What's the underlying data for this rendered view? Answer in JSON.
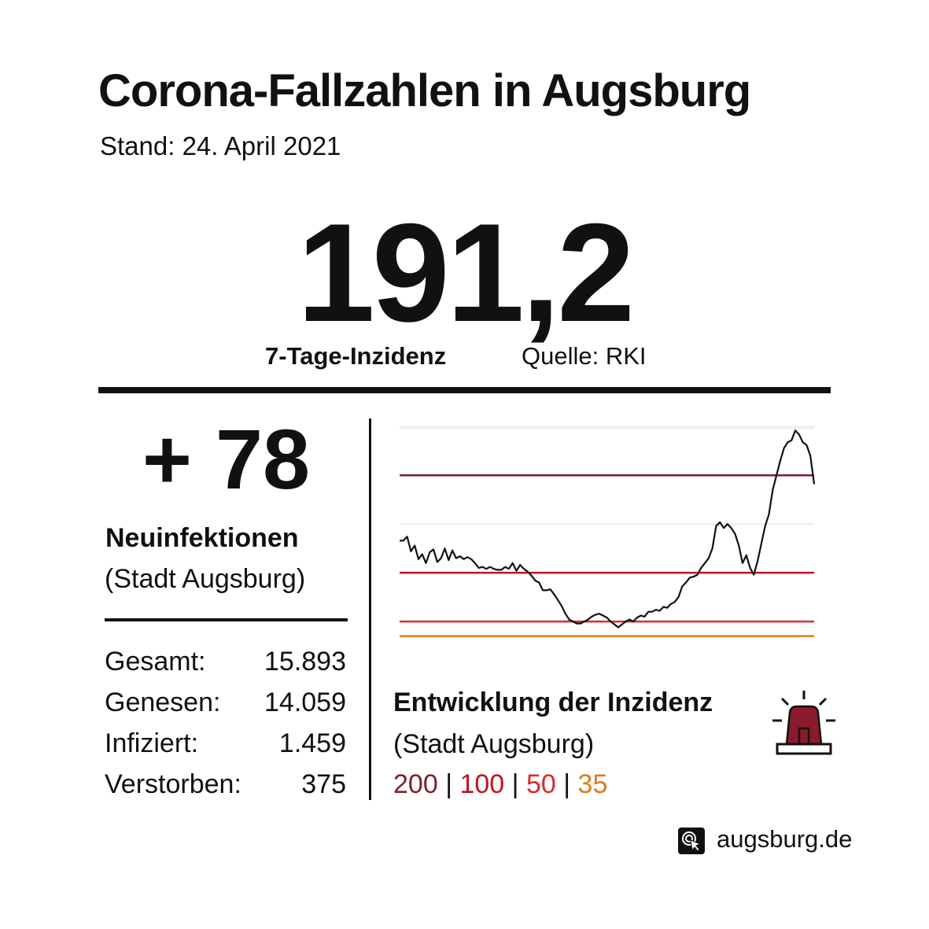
{
  "header": {
    "title": "Corona-Fallzahlen in Augsburg",
    "subtitle": "Stand: 24. April 2021"
  },
  "incidence": {
    "value": "191,2",
    "label": "7-Tage-Inzidenz",
    "source": "Quelle: RKI"
  },
  "new_infections": {
    "value": "+ 78",
    "label": "Neuinfektionen",
    "sub": "(Stadt Augsburg)"
  },
  "stats": [
    {
      "label": "Gesamt:",
      "value": "15.893"
    },
    {
      "label": "Genesen:",
      "value": "14.059"
    },
    {
      "label": "Infiziert:",
      "value": "1.459"
    },
    {
      "label": "Verstorben:",
      "value": "375"
    }
  ],
  "chart_section": {
    "title": "Entwicklung der Inzidenz",
    "sub": "(Stadt Augsburg)",
    "thresholds": [
      {
        "label": "200",
        "color": "#7a1e2e"
      },
      {
        "label": "100",
        "color": "#c0151e"
      },
      {
        "label": "50",
        "color": "#d92b2b"
      },
      {
        "label": "35",
        "color": "#e07a1c"
      }
    ],
    "separator": "|"
  },
  "chart_data": {
    "type": "line",
    "title": "",
    "xlabel": "",
    "ylabel": "",
    "ylim": [
      0,
      260
    ],
    "grid": true,
    "threshold_lines": [
      {
        "value": 200,
        "color": "#7a1e2e"
      },
      {
        "value": 100,
        "color": "#c0151e"
      },
      {
        "value": 50,
        "color": "#d92b2b"
      },
      {
        "value": 35,
        "color": "#e07a1c"
      }
    ],
    "series": [
      {
        "color": "#111111",
        "values": [
          133,
          133,
          137,
          122,
          128,
          114,
          119,
          110,
          121,
          124,
          111,
          115,
          125,
          113,
          123,
          115,
          117,
          114,
          116,
          114,
          110,
          105,
          106,
          104,
          106,
          104,
          103,
          103,
          106,
          104,
          110,
          102,
          108,
          104,
          101,
          97,
          92,
          90,
          82,
          82,
          83,
          78,
          72,
          66,
          58,
          52,
          50,
          48,
          48,
          50,
          52,
          55,
          57,
          58,
          56,
          54,
          50,
          47,
          44,
          47,
          50,
          52,
          50,
          54,
          56,
          55,
          60,
          60,
          62,
          61,
          65,
          64,
          68,
          70,
          75,
          86,
          90,
          95,
          96,
          98,
          105,
          110,
          115,
          125,
          148,
          152,
          146,
          150,
          146,
          140,
          128,
          110,
          118,
          105,
          98,
          112,
          130,
          148,
          160,
          185,
          200,
          215,
          228,
          234,
          236,
          246,
          242,
          234,
          231,
          220,
          191
        ]
      }
    ]
  },
  "brand": {
    "label": "augsburg.de",
    "icon": "cursor-click-icon"
  },
  "alarm_icon": "siren-icon"
}
